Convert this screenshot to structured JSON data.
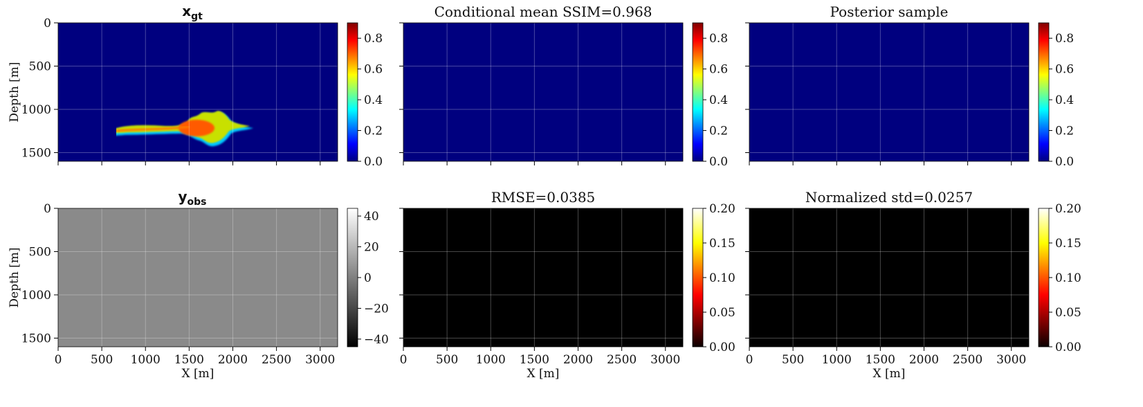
{
  "figure": "seismic CO2 plume inversion panels",
  "chart_data": [
    {
      "type": "heatmap",
      "id": "xgt",
      "title_main": "x",
      "title_sub": "gt",
      "xlabel": "",
      "ylabel": "Depth [m]",
      "xlim": [
        0,
        3200
      ],
      "ylim": [
        1600,
        0
      ],
      "xticks": [
        0,
        500,
        1000,
        1500,
        2000,
        2500,
        3000
      ],
      "xticklabels": [],
      "yticks": [
        0,
        500,
        1000,
        1500
      ],
      "yticklabels": [
        "0",
        "500",
        "1000",
        "1500"
      ],
      "colormap": "jet",
      "clim": [
        0.0,
        0.9
      ],
      "colorbar_ticks": [
        "0.0",
        "0.2",
        "0.4",
        "0.6",
        "0.8"
      ],
      "colorbar_values": [
        0.0,
        0.2,
        0.4,
        0.6,
        0.8
      ]
    },
    {
      "type": "heatmap",
      "id": "cmean",
      "title": "Conditional mean SSIM=0.968",
      "xlabel": "",
      "ylabel": "",
      "xlim": [
        0,
        3200
      ],
      "ylim": [
        1600,
        0
      ],
      "xticks": [
        0,
        500,
        1000,
        1500,
        2000,
        2500,
        3000
      ],
      "xticklabels": [],
      "yticks": [
        0,
        500,
        1000,
        1500
      ],
      "yticklabels": [],
      "colormap": "jet",
      "clim": [
        0.0,
        0.9
      ],
      "colorbar_ticks": [
        "0.0",
        "0.2",
        "0.4",
        "0.6",
        "0.8"
      ],
      "colorbar_values": [
        0.0,
        0.2,
        0.4,
        0.6,
        0.8
      ]
    },
    {
      "type": "heatmap",
      "id": "psample",
      "title": "Posterior sample",
      "xlabel": "",
      "ylabel": "",
      "xlim": [
        0,
        3200
      ],
      "ylim": [
        1600,
        0
      ],
      "xticks": [
        0,
        500,
        1000,
        1500,
        2000,
        2500,
        3000
      ],
      "xticklabels": [],
      "yticks": [
        0,
        500,
        1000,
        1500
      ],
      "yticklabels": [],
      "colormap": "jet",
      "clim": [
        0.0,
        0.9
      ],
      "colorbar_ticks": [
        "0.0",
        "0.2",
        "0.4",
        "0.6",
        "0.8"
      ],
      "colorbar_values": [
        0.0,
        0.2,
        0.4,
        0.6,
        0.8
      ]
    },
    {
      "type": "heatmap",
      "id": "yobs",
      "title_main": "y",
      "title_sub": "obs",
      "xlabel": "X [m]",
      "ylabel": "Depth [m]",
      "xlim": [
        0,
        3200
      ],
      "ylim": [
        1600,
        0
      ],
      "xticks": [
        0,
        500,
        1000,
        1500,
        2000,
        2500,
        3000
      ],
      "xticklabels": [
        "0",
        "500",
        "1000",
        "1500",
        "2000",
        "2500",
        "3000"
      ],
      "yticks": [
        0,
        500,
        1000,
        1500
      ],
      "yticklabels": [
        "0",
        "500",
        "1000",
        "1500"
      ],
      "colormap": "gray",
      "clim": [
        -45,
        45
      ],
      "colorbar_ticks": [
        "−40",
        "−20",
        "0",
        "20",
        "40"
      ],
      "colorbar_values": [
        -40,
        -20,
        0,
        20,
        40
      ]
    },
    {
      "type": "heatmap",
      "id": "rmse",
      "title": "RMSE=0.0385",
      "xlabel": "X [m]",
      "ylabel": "",
      "xlim": [
        0,
        3200
      ],
      "ylim": [
        1600,
        0
      ],
      "xticks": [
        0,
        500,
        1000,
        1500,
        2000,
        2500,
        3000
      ],
      "xticklabels": [
        "0",
        "500",
        "1000",
        "1500",
        "2000",
        "2500",
        "3000"
      ],
      "yticks": [
        0,
        500,
        1000,
        1500
      ],
      "yticklabels": [],
      "colormap": "hot",
      "clim": [
        0.0,
        0.2
      ],
      "colorbar_ticks": [
        "0.00",
        "0.05",
        "0.10",
        "0.15",
        "0.20"
      ],
      "colorbar_values": [
        0.0,
        0.05,
        0.1,
        0.15,
        0.2
      ]
    },
    {
      "type": "heatmap",
      "id": "nstd",
      "title": "Normalized std=0.0257",
      "xlabel": "X [m]",
      "ylabel": "",
      "xlim": [
        0,
        3200
      ],
      "ylim": [
        1600,
        0
      ],
      "xticks": [
        0,
        500,
        1000,
        1500,
        2000,
        2500,
        3000
      ],
      "xticklabels": [
        "0",
        "500",
        "1000",
        "1500",
        "2000",
        "2500",
        "3000"
      ],
      "yticks": [
        0,
        500,
        1000,
        1500
      ],
      "yticklabels": [],
      "colormap": "hot",
      "clim": [
        0.0,
        0.2
      ],
      "colorbar_ticks": [
        "0.00",
        "0.05",
        "0.10",
        "0.15",
        "0.20"
      ],
      "colorbar_values": [
        0.0,
        0.05,
        0.1,
        0.15,
        0.2
      ]
    }
  ]
}
